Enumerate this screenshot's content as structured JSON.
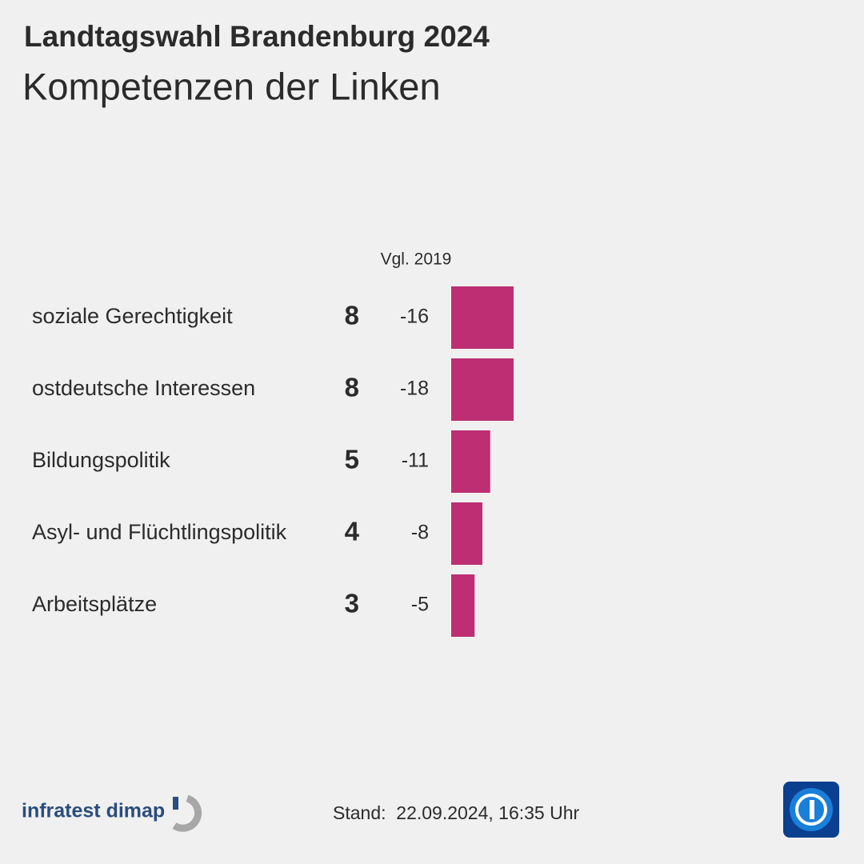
{
  "header": {
    "title": "Landtagswahl Brandenburg 2024",
    "subtitle": "Kompetenzen der Linken"
  },
  "chart_data": {
    "type": "bar",
    "orientation": "horizontal",
    "color": "#bd2e72",
    "categories": [
      "soziale Gerechtigkeit",
      "ostdeutsche Interessen",
      "Bildungspolitik",
      "Asyl- und Flüchtlingspolitik",
      "Arbeitsplätze"
    ],
    "values": [
      8,
      8,
      5,
      4,
      3
    ],
    "change_label": "Vgl. 2019",
    "changes": [
      -16,
      -18,
      -11,
      -8,
      -5
    ]
  },
  "footer": {
    "source": "infratest dimap",
    "stand": "Stand:  22.09.2024, 16:35 Uhr"
  }
}
